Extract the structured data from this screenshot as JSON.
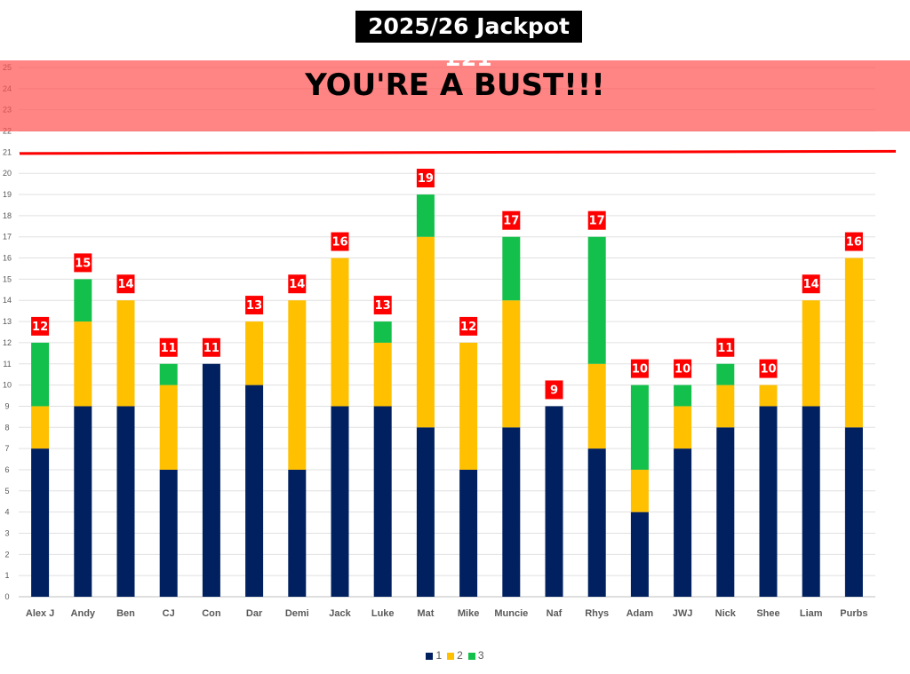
{
  "header": {
    "title": "2025/26 Jackpot £21"
  },
  "banner": {
    "text": "YOU'RE A BUST!!!",
    "color": "#FF8080"
  },
  "chart_data": {
    "type": "bar",
    "stacked": true,
    "categories": [
      "Alex J",
      "Andy",
      "Ben",
      "CJ",
      "Con",
      "Dar",
      "Demi",
      "Jack",
      "Luke",
      "Mat",
      "Mike",
      "Muncie",
      "Naf",
      "Rhys",
      "Adam",
      "JWJ",
      "Nick",
      "Shee",
      "Liam",
      "Purbs"
    ],
    "series": [
      {
        "name": "1",
        "color": "#002060",
        "values": [
          7,
          9,
          9,
          6,
          11,
          10,
          6,
          9,
          9,
          8,
          6,
          8,
          9,
          7,
          4,
          7,
          8,
          9,
          9,
          8
        ]
      },
      {
        "name": "2",
        "color": "#FFC000",
        "values": [
          2,
          4,
          5,
          4,
          0,
          3,
          8,
          7,
          3,
          9,
          6,
          6,
          0,
          4,
          2,
          2,
          2,
          1,
          5,
          8
        ]
      },
      {
        "name": "3",
        "color": "#13C04B",
        "values": [
          3,
          2,
          0,
          1,
          0,
          0,
          0,
          0,
          1,
          2,
          0,
          3,
          0,
          6,
          4,
          1,
          1,
          0,
          0,
          0
        ]
      }
    ],
    "totals": [
      12,
      15,
      14,
      11,
      11,
      13,
      14,
      16,
      13,
      19,
      12,
      17,
      9,
      17,
      10,
      10,
      11,
      10,
      14,
      16
    ],
    "ylim": [
      0,
      25
    ],
    "yticks": [
      0,
      1,
      2,
      3,
      4,
      5,
      6,
      7,
      8,
      9,
      10,
      11,
      12,
      13,
      14,
      15,
      16,
      17,
      18,
      19,
      20,
      21,
      22,
      23,
      24,
      25
    ],
    "grid": true,
    "legend": "bottom",
    "reference_line": {
      "value": 21,
      "color": "#FF0000"
    },
    "bust_zone": [
      22,
      25
    ],
    "label_color": "#FF0000"
  }
}
